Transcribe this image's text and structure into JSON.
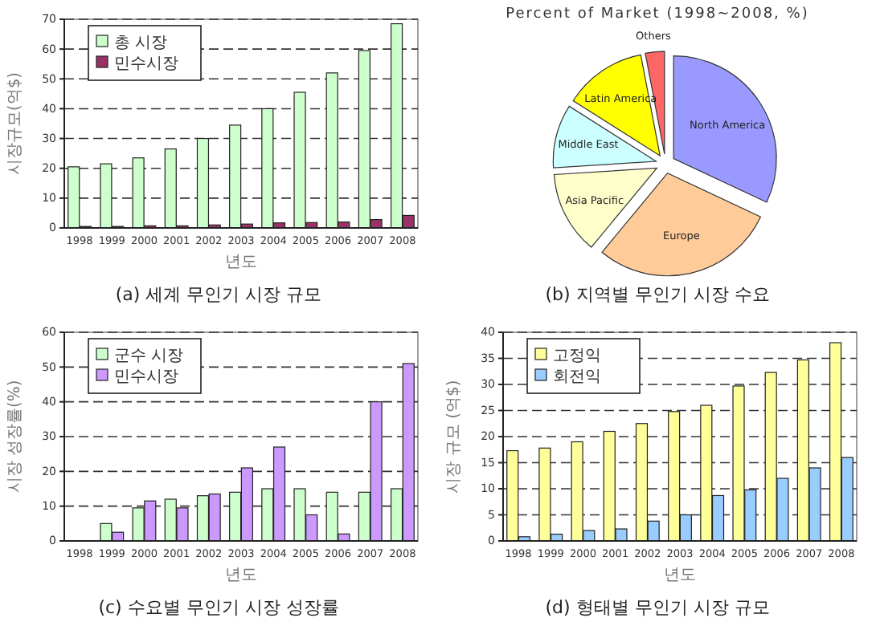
{
  "chart_data": [
    {
      "type": "bar",
      "ylabel": "시장규모(억$)",
      "xlabel": "년도",
      "annotations": [
        "(a) 세계 무인기 시장 규모"
      ],
      "categories": [
        "1998",
        "1999",
        "2000",
        "2001",
        "2002",
        "2003",
        "2004",
        "2005",
        "2006",
        "2007",
        "2008"
      ],
      "series": [
        {
          "name": "총 시장",
          "color": "#ccffcc",
          "values": [
            20.5,
            21.5,
            23.5,
            26.5,
            30,
            34.5,
            40,
            45.5,
            52,
            59.5,
            68.5
          ]
        },
        {
          "name": "민수시장",
          "color": "#993366",
          "values": [
            0.5,
            0.5,
            0.7,
            0.7,
            1,
            1.3,
            1.7,
            1.8,
            2,
            2.8,
            4.2
          ]
        }
      ],
      "ylim": [
        0,
        70
      ],
      "yticks": [
        0,
        10,
        20,
        30,
        40,
        50,
        60,
        70
      ],
      "grid": "y",
      "legend": "top left"
    },
    {
      "type": "pie",
      "title": "Percent of Market (1998~2008, %)",
      "annotations": [
        "(b) 지역별 무인기 시장 수요"
      ],
      "categories": [
        "North America",
        "Europe",
        "Asia Pacific",
        "Middle East",
        "Latin America",
        "Others"
      ],
      "values": [
        32,
        29,
        13,
        10,
        13,
        3
      ],
      "colors": [
        "#9999ff",
        "#ffcc99",
        "#ffffcc",
        "#ccffff",
        "#ffff00",
        "#ff6666"
      ]
    },
    {
      "type": "bar",
      "ylabel": "시장 성장률(%)",
      "xlabel": "년도",
      "annotations": [
        "(c) 수요별 무인기 시장 성장률"
      ],
      "categories": [
        "1998",
        "1999",
        "2000",
        "2001",
        "2002",
        "2003",
        "2004",
        "2005",
        "2006",
        "2007",
        "2008"
      ],
      "series": [
        {
          "name": "군수 시장",
          "color": "#ccffcc",
          "values": [
            null,
            5,
            9.5,
            12,
            13,
            14,
            15,
            15,
            14,
            14,
            15
          ]
        },
        {
          "name": "민수시장",
          "color": "#cc99ff",
          "values": [
            null,
            2.5,
            11.5,
            9.5,
            13.5,
            21,
            27,
            7.5,
            2,
            40,
            51
          ]
        }
      ],
      "ylim": [
        0,
        60
      ],
      "yticks": [
        0,
        10,
        20,
        30,
        40,
        50,
        60
      ],
      "grid": "y",
      "legend": "top left"
    },
    {
      "type": "bar",
      "ylabel": "시장 규모 (억$)",
      "xlabel": "년도",
      "annotations": [
        "(d) 형태별 무인기 시장 규모"
      ],
      "categories": [
        "1998",
        "1999",
        "2000",
        "2001",
        "2002",
        "2003",
        "2004",
        "2005",
        "2006",
        "2007",
        "2008"
      ],
      "series": [
        {
          "name": "고정익",
          "color": "#ffff99",
          "values": [
            17.3,
            17.8,
            19,
            21,
            22.5,
            24.8,
            26,
            29.7,
            32.3,
            34.7,
            38
          ]
        },
        {
          "name": "회전익",
          "color": "#99ccff",
          "values": [
            0.8,
            1.3,
            2,
            2.3,
            3.8,
            5,
            8.7,
            9.8,
            12,
            14,
            16
          ]
        }
      ],
      "ylim": [
        0,
        40
      ],
      "yticks": [
        0,
        5,
        10,
        15,
        20,
        25,
        30,
        35,
        40
      ],
      "grid": "y",
      "legend": "top left"
    }
  ]
}
